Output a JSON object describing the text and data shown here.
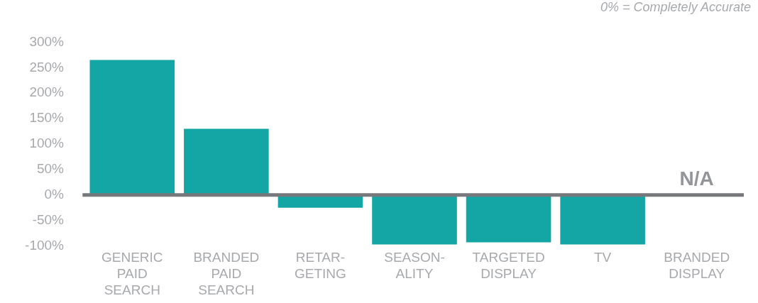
{
  "chart_data": {
    "type": "bar",
    "subtitle": "0% = Completely Accurate",
    "categories": [
      "GENERIC PAID SEARCH",
      "BRANDED PAID SEARCH",
      "RETAR-GETING",
      "SEASON-ALITY",
      "TARGETED DISPLAY",
      "TV",
      "BRANDED DISPLAY"
    ],
    "values": [
      265,
      130,
      -25,
      -97,
      -93,
      -97,
      null
    ],
    "color": "#14a5a5",
    "ylim": [
      -100,
      300
    ],
    "yticks": [
      {
        "value": -100,
        "label": "-100%"
      },
      {
        "value": -50,
        "label": "-50%"
      },
      {
        "value": 0,
        "label": "0%"
      },
      {
        "value": 50,
        "label": "50%"
      },
      {
        "value": 100,
        "label": "100%"
      },
      {
        "value": 150,
        "label": "150%"
      },
      {
        "value": 200,
        "label": "200%"
      },
      {
        "value": 250,
        "label": "250%"
      },
      {
        "value": 300,
        "label": "300%"
      }
    ],
    "ref_lines": [
      {
        "axis": "y",
        "value": 0,
        "color": "#77787b"
      }
    ],
    "annotations": [
      {
        "text": "N/A",
        "x": "BRANDED DISPLAY",
        "y": 0
      }
    ],
    "grid": false,
    "legend": false
  }
}
